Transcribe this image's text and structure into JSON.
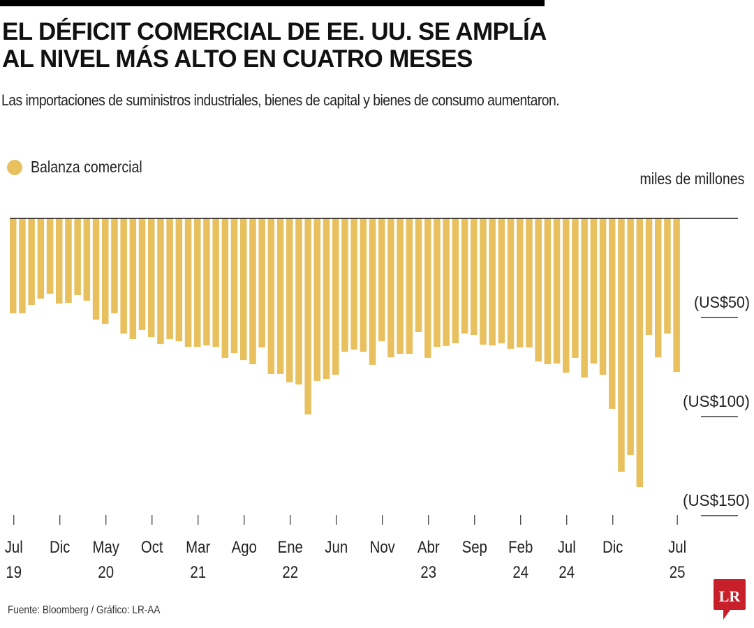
{
  "header": {
    "title_line1": "EL DÉFICIT COMERCIAL DE EE. UU. SE AMPLÍA",
    "title_line2": "AL NIVEL MÁS ALTO EN CUATRO MESES",
    "subtitle": "Las importaciones de suministros industriales, bienes de capital y bienes de consumo aumentaron."
  },
  "footer": {
    "source": "Fuente: Bloomberg / Gráfico: LR-AA",
    "logo_text": "LR"
  },
  "colors": {
    "bar": "#E8C05E",
    "logo": "#C8202B",
    "text": "#222222"
  },
  "chart_data": {
    "type": "bar",
    "title": "EL DÉFICIT COMERCIAL DE EE. UU. SE AMPLÍA AL NIVEL MÁS ALTO EN CUATRO MESES",
    "legend": [
      {
        "name": "Balanza comercial",
        "color": "#E8C05E"
      }
    ],
    "legend_position": "top-left",
    "unit_label": "miles de millones",
    "xlabel": "",
    "ylabel": "miles de millones (US$)",
    "ylim": [
      -150,
      0
    ],
    "yticks": [
      {
        "value": -50,
        "label": "(US$50)"
      },
      {
        "value": -100,
        "label": "(US$100)"
      },
      {
        "value": -150,
        "label": "(US$150)"
      }
    ],
    "grid": false,
    "start": "Jul 2019",
    "end": "Jul 2025",
    "xticks": [
      {
        "index": 0,
        "line1": "Jul",
        "line2": "19"
      },
      {
        "index": 5,
        "line1": "Dic",
        "line2": ""
      },
      {
        "index": 10,
        "line1": "May",
        "line2": "20"
      },
      {
        "index": 15,
        "line1": "Oct",
        "line2": ""
      },
      {
        "index": 20,
        "line1": "Mar",
        "line2": "21"
      },
      {
        "index": 25,
        "line1": "Ago",
        "line2": ""
      },
      {
        "index": 30,
        "line1": "Ene",
        "line2": "22"
      },
      {
        "index": 35,
        "line1": "Jun",
        "line2": ""
      },
      {
        "index": 40,
        "line1": "Nov",
        "line2": ""
      },
      {
        "index": 45,
        "line1": "Abr",
        "line2": "23"
      },
      {
        "index": 50,
        "line1": "Sep",
        "line2": ""
      },
      {
        "index": 55,
        "line1": "Feb",
        "line2": "24"
      },
      {
        "index": 60,
        "line1": "Jul",
        "line2": "24"
      },
      {
        "index": 65,
        "line1": "Dic",
        "line2": ""
      },
      {
        "index": 72,
        "line1": "Jul",
        "line2": "25"
      }
    ],
    "series": [
      {
        "name": "Balanza comercial",
        "values": [
          -47.9,
          -47.9,
          -43.7,
          -40.5,
          -38.0,
          -43.0,
          -42.6,
          -38.7,
          -41.5,
          -51.1,
          -53.2,
          -47.9,
          -58.1,
          -60.9,
          -56.3,
          -59.9,
          -63.4,
          -60.9,
          -62.0,
          -64.8,
          -64.8,
          -64.1,
          -64.8,
          -70.4,
          -68.0,
          -71.5,
          -73.6,
          -65.1,
          -78.5,
          -78.5,
          -82.7,
          -83.8,
          -98.9,
          -82.0,
          -81.0,
          -78.9,
          -67.3,
          -66.2,
          -67.3,
          -73.9,
          -62.0,
          -70.1,
          -68.3,
          -68.3,
          -57.4,
          -70.4,
          -64.8,
          -64.4,
          -63.0,
          -58.1,
          -58.8,
          -63.7,
          -64.1,
          -63.0,
          -65.8,
          -65.1,
          -65.1,
          -72.2,
          -73.6,
          -73.2,
          -77.8,
          -70.4,
          -80.3,
          -73.2,
          -78.9,
          -96.1,
          -127.8,
          -119.4,
          -135.6,
          -58.8,
          -70.1,
          -58.1,
          -77.5
        ]
      }
    ]
  }
}
